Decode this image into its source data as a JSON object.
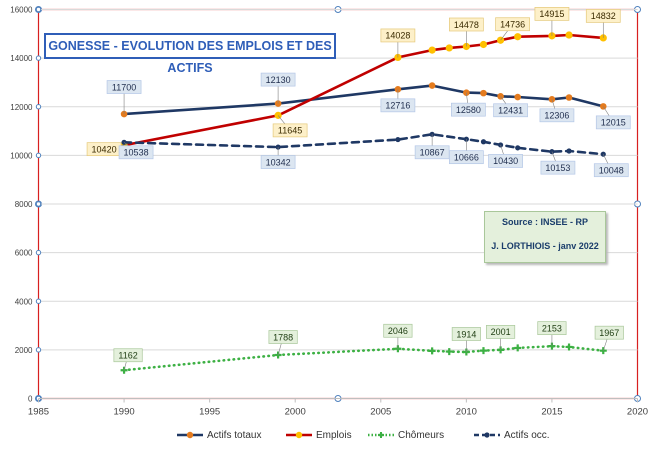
{
  "chart_data": {
    "type": "line",
    "title": "GONESSE - EVOLUTION DES EMPLOIS ET DES ACTIFS",
    "annotation": {
      "source": "Source : INSEE - RP",
      "author": "J. LORTHIOIS - janv 2022"
    },
    "xlim": [
      1985,
      2020
    ],
    "ylim": [
      0,
      16000
    ],
    "x_ticks": [
      "1985",
      "1990",
      "1995",
      "2000",
      "2005",
      "2010",
      "2015",
      "2020"
    ],
    "y_ticks": [
      "0",
      "2000",
      "4000",
      "6000",
      "8000",
      "10000",
      "12000",
      "14000",
      "16000"
    ],
    "grid": true,
    "legend_position": "bottom",
    "series": [
      {
        "name": "Actifs totaux",
        "color": "#1f3864",
        "style": "solid",
        "marker": "dot-orange",
        "x": [
          1990,
          1999,
          2006,
          2008,
          2010,
          2011,
          2012,
          2013,
          2015,
          2016,
          2018
        ],
        "y": [
          11700,
          12130,
          12716,
          12870,
          12580,
          12560,
          12431,
          12400,
          12306,
          12380,
          12015
        ],
        "labels": [
          "11700",
          "12130",
          "12716",
          "",
          "12580",
          "",
          "12431",
          "",
          "12306",
          "",
          "12015"
        ]
      },
      {
        "name": "Emplois",
        "color": "#c00000",
        "style": "solid",
        "marker": "dot-yellow",
        "x": [
          1990,
          1999,
          2006,
          2008,
          2009,
          2010,
          2011,
          2012,
          2013,
          2015,
          2016,
          2018
        ],
        "y": [
          10420,
          11645,
          14028,
          14330,
          14420,
          14478,
          14560,
          14736,
          14880,
          14915,
          14950,
          14832
        ],
        "labels": [
          "10420",
          "11645",
          "14028",
          "",
          "",
          "14478",
          "",
          "14736",
          "",
          "14915",
          "",
          "14832"
        ]
      },
      {
        "name": "Chômeurs",
        "color": "#3cb043",
        "style": "dotted",
        "marker": "plus-green",
        "x": [
          1990,
          1999,
          2006,
          2008,
          2009,
          2010,
          2011,
          2012,
          2013,
          2015,
          2016,
          2018
        ],
        "y": [
          1162,
          1788,
          2046,
          1960,
          1930,
          1914,
          1970,
          2001,
          2080,
          2153,
          2120,
          1967
        ],
        "labels": [
          "1162",
          "1788",
          "2046",
          "",
          "",
          "1914",
          "",
          "2001",
          "",
          "2153",
          "",
          "1967"
        ]
      },
      {
        "name": "Actifs occ.",
        "color": "#1f3864",
        "style": "dashed",
        "marker": "dash-navy",
        "x": [
          1990,
          1999,
          2006,
          2008,
          2010,
          2011,
          2012,
          2013,
          2015,
          2016,
          2018
        ],
        "y": [
          10538,
          10342,
          10650,
          10867,
          10666,
          10560,
          10430,
          10310,
          10153,
          10180,
          10048
        ],
        "labels": [
          "10538",
          "10342",
          "",
          "10867",
          "10666",
          "",
          "10430",
          "",
          "10153",
          "",
          "10048"
        ]
      }
    ]
  }
}
